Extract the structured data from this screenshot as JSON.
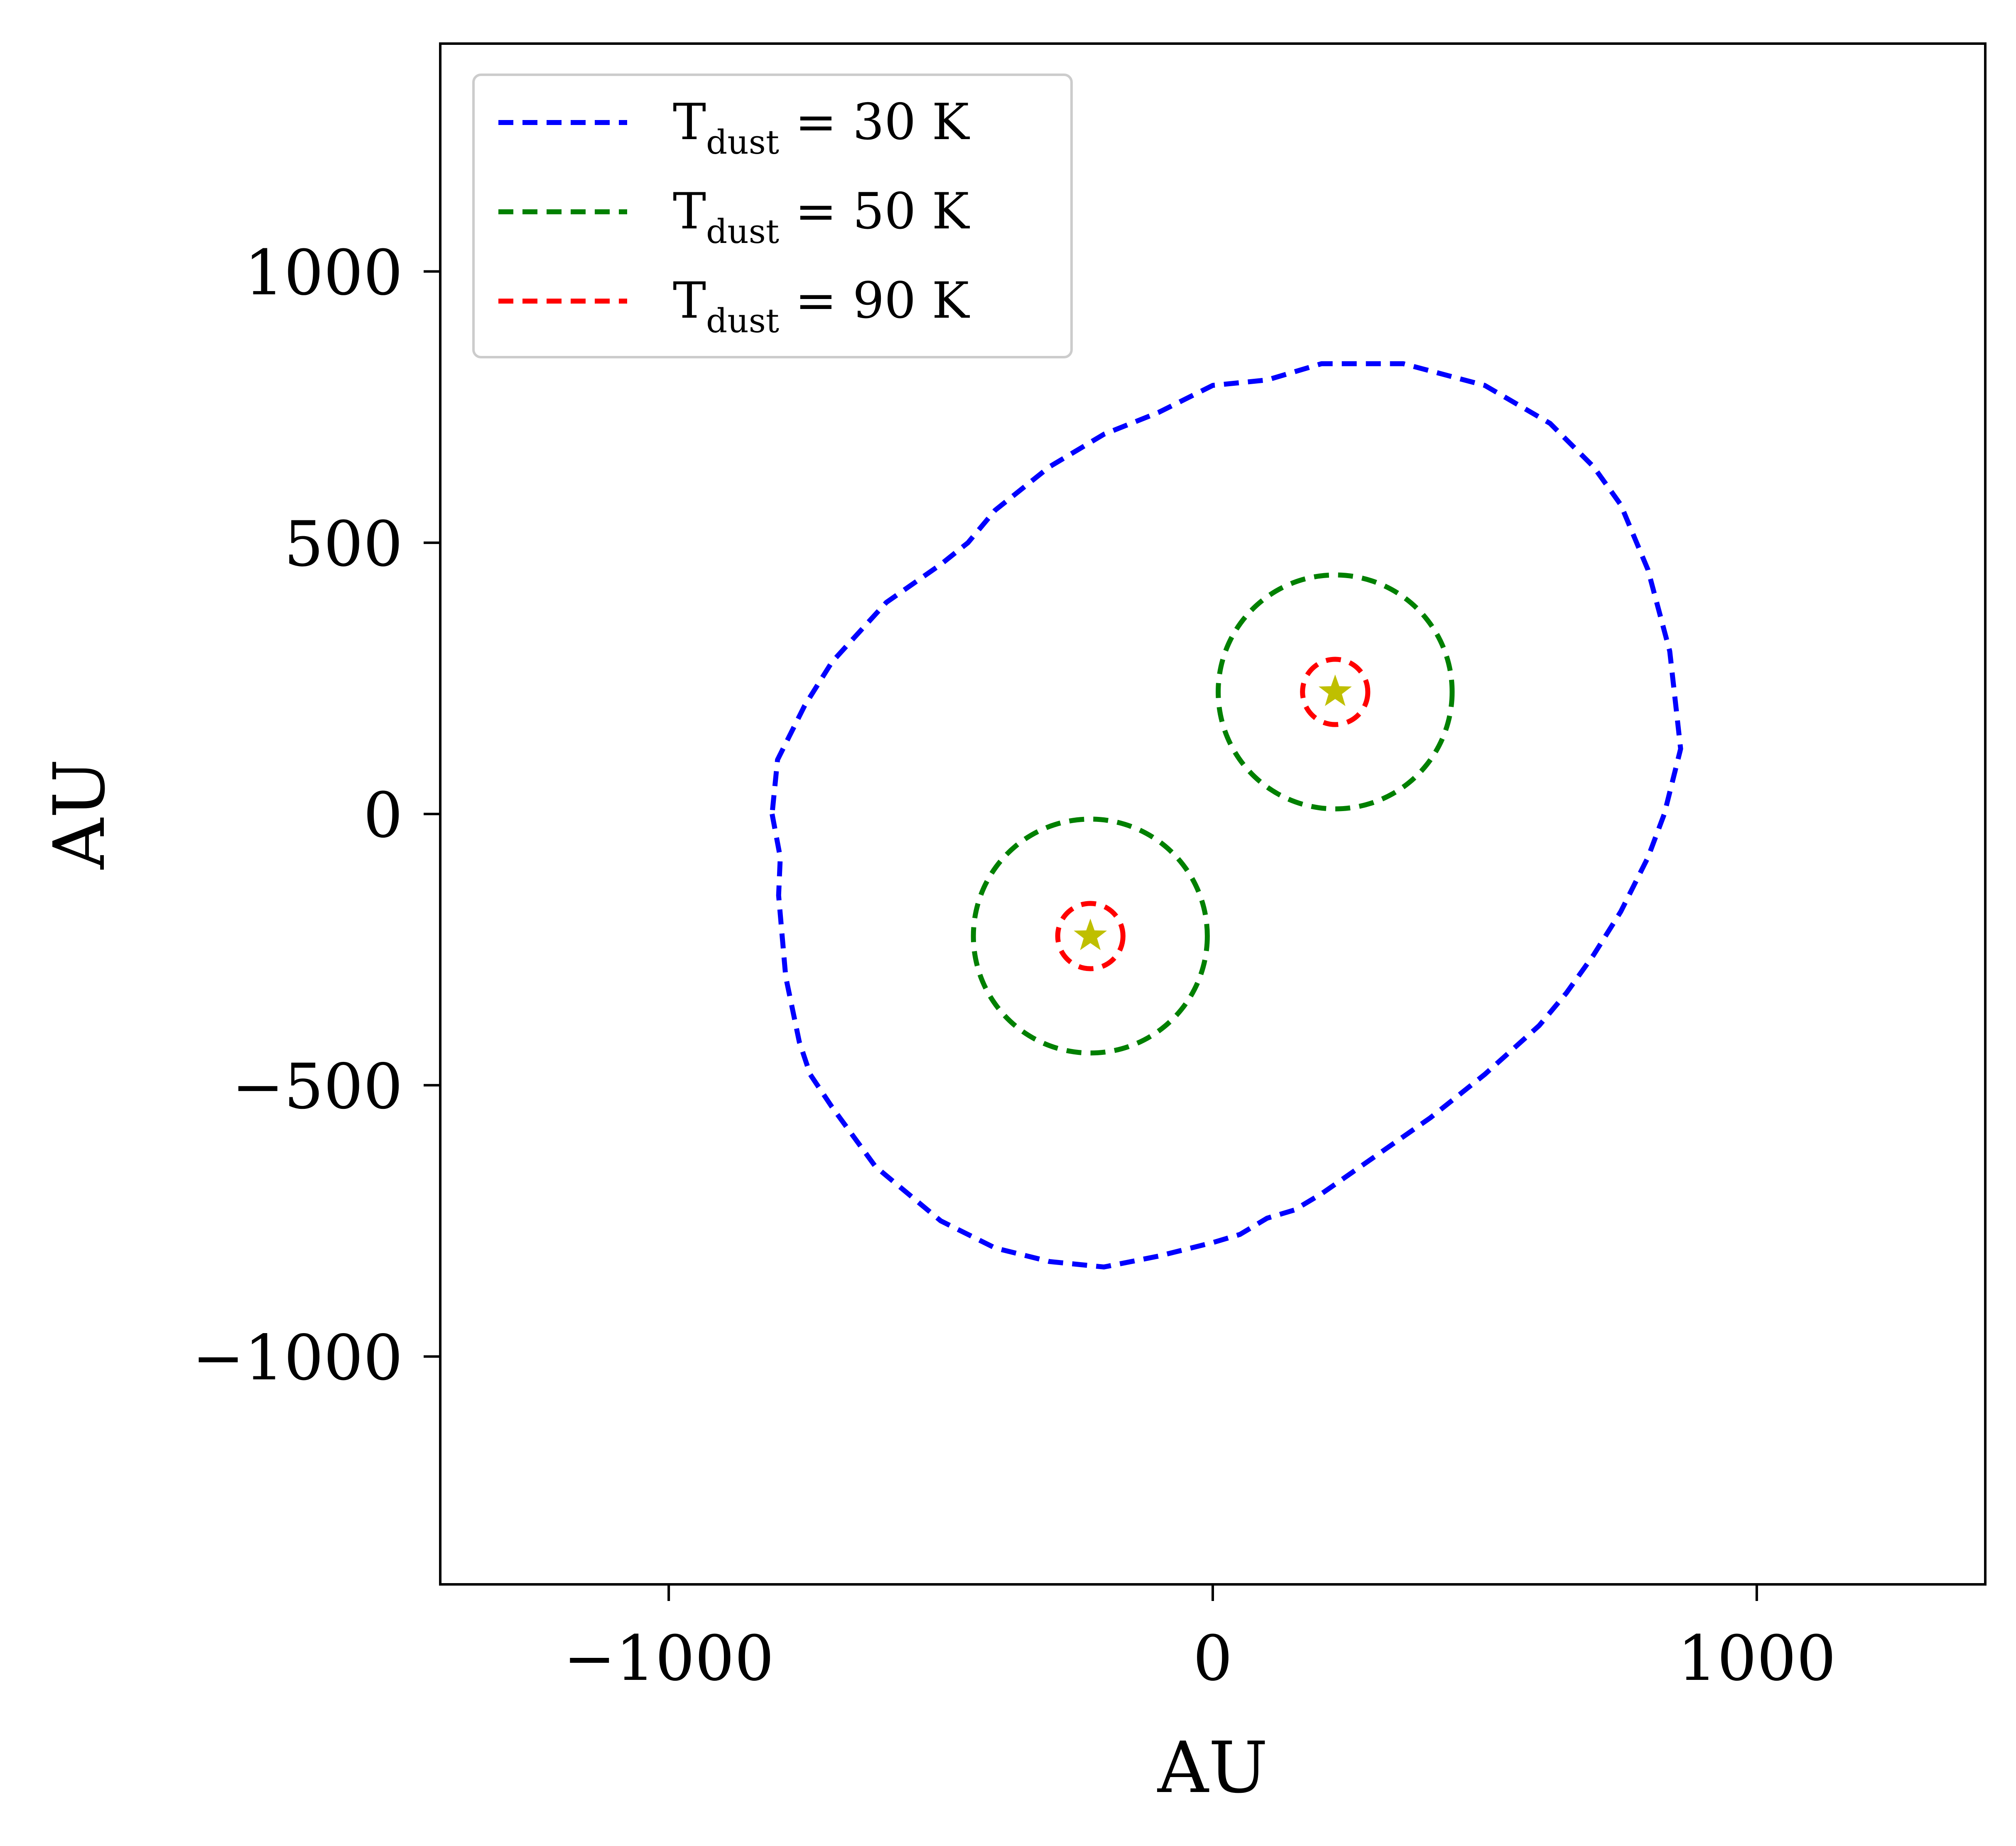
{
  "chart_data": {
    "type": "line",
    "xlabel": "AU",
    "ylabel": "AU",
    "xlim": [
      -1420,
      1420
    ],
    "ylim": [
      -1420,
      1420
    ],
    "x_ticks": [
      -1000,
      0,
      1000
    ],
    "y_ticks": [
      -1000,
      -500,
      0,
      500,
      1000
    ],
    "x_tick_labels": [
      "−1000",
      "0",
      "1000"
    ],
    "y_tick_labels": [
      "−1000",
      "−500",
      "0",
      "500",
      "1000"
    ],
    "grid": false,
    "legend_position": "upper-left",
    "series": [
      {
        "name": "T_dust = 30 K",
        "label_main": "T",
        "label_sub": "dust",
        "label_rest": " = 30 K",
        "color": "#0000ff",
        "style": "dashed",
        "points": [
          [
            -810,
            0
          ],
          [
            -795,
            -80
          ],
          [
            -798,
            -150
          ],
          [
            -785,
            -300
          ],
          [
            -760,
            -420
          ],
          [
            -740,
            -480
          ],
          [
            -700,
            -540
          ],
          [
            -620,
            -650
          ],
          [
            -500,
            -750
          ],
          [
            -400,
            -800
          ],
          [
            -300,
            -825
          ],
          [
            -200,
            -835
          ],
          [
            -100,
            -815
          ],
          [
            0,
            -790
          ],
          [
            50,
            -775
          ],
          [
            100,
            -745
          ],
          [
            150,
            -730
          ],
          [
            200,
            -700
          ],
          [
            300,
            -630
          ],
          [
            400,
            -560
          ],
          [
            450,
            -520
          ],
          [
            500,
            -480
          ],
          [
            600,
            -390
          ],
          [
            650,
            -330
          ],
          [
            700,
            -260
          ],
          [
            750,
            -180
          ],
          [
            800,
            -80
          ],
          [
            830,
            0
          ],
          [
            860,
            120
          ],
          [
            840,
            300
          ],
          [
            800,
            450
          ],
          [
            750,
            570
          ],
          [
            700,
            640
          ],
          [
            620,
            720
          ],
          [
            500,
            790
          ],
          [
            350,
            830
          ],
          [
            200,
            830
          ],
          [
            100,
            800
          ],
          [
            0,
            790
          ],
          [
            -100,
            740
          ],
          [
            -200,
            700
          ],
          [
            -300,
            640
          ],
          [
            -400,
            560
          ],
          [
            -450,
            500
          ],
          [
            -500,
            460
          ],
          [
            -600,
            390
          ],
          [
            -700,
            280
          ],
          [
            -750,
            200
          ],
          [
            -800,
            100
          ],
          [
            -810,
            0
          ]
        ]
      },
      {
        "name": "T_dust = 50 K",
        "label_main": "T",
        "label_sub": "dust",
        "label_rest": " = 50 K",
        "color": "#008000",
        "style": "dashed",
        "rings": [
          {
            "cx": -225,
            "cy": -225,
            "r": 215
          },
          {
            "cx": 225,
            "cy": 225,
            "r": 215
          }
        ]
      },
      {
        "name": "T_dust = 90 K",
        "label_main": "T",
        "label_sub": "dust",
        "label_rest": " = 90 K",
        "color": "#ff0000",
        "style": "dashed",
        "rings": [
          {
            "cx": -225,
            "cy": -225,
            "r": 60
          },
          {
            "cx": 225,
            "cy": 225,
            "r": 60
          }
        ]
      }
    ],
    "star_markers": {
      "color": "#bfbf00",
      "positions": [
        [
          -225,
          -225
        ],
        [
          225,
          225
        ]
      ]
    }
  }
}
